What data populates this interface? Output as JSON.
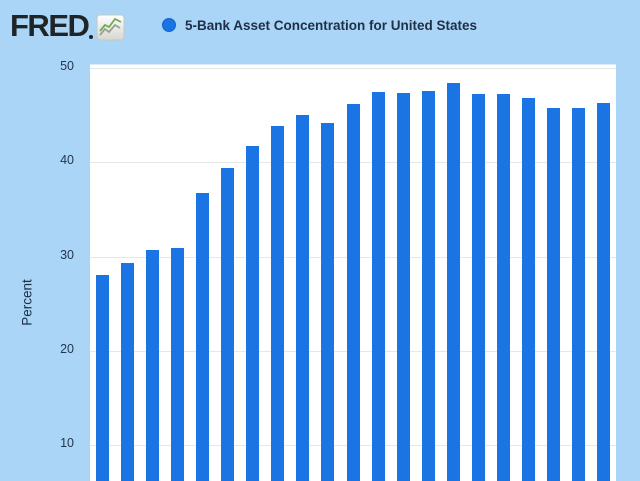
{
  "header": {
    "logo_text": "FRED",
    "logo_icon": "line-chart-icon",
    "legend": {
      "marker": "circle",
      "marker_color": "#1b74e4",
      "label": "5-Bank Asset Concentration for United States"
    }
  },
  "chart_data": {
    "type": "bar",
    "title": "5-Bank Asset Concentration for United States",
    "ylabel": "Percent",
    "xlabel": "",
    "x_tick_labels_visible": false,
    "y_ticks": [
      10,
      20,
      30,
      40,
      50
    ],
    "ylim": [
      0,
      50.3
    ],
    "grid": true,
    "legend_position": "top",
    "bar_color": "#1b74e4",
    "values": [
      28.0,
      29.3,
      30.7,
      30.9,
      36.7,
      39.4,
      41.7,
      43.8,
      45.0,
      44.2,
      46.2,
      47.4,
      47.3,
      47.6,
      48.4,
      47.2,
      47.2,
      46.8,
      45.7,
      45.7,
      46.3
    ],
    "note": "bottom of plot and x-axis labels are cropped out of the visible screenshot"
  },
  "colors": {
    "background": "#aad5f6",
    "plot_background": "#ffffff",
    "gridline": "#e7e7e7",
    "text": "#1e2f48",
    "logo": "#1f2428"
  }
}
